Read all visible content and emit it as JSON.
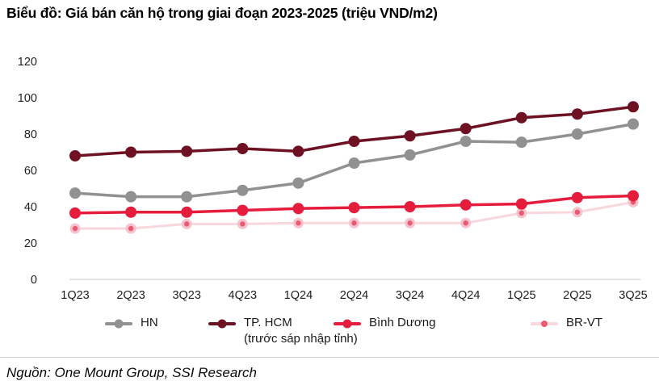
{
  "title": "Biểu đồ: Giá bán căn hộ trong giai đoạn 2023-2025 (triệu VND/m2)",
  "source": "Nguồn: One Mount Group, SSI Research",
  "colors": {
    "hn_gray": "#919191",
    "hcm_maroon": "#6E1123",
    "binh_duong_red": "#E61C3D",
    "brvt_pink_line": "#F8D7DD",
    "brvt_pink_halo": "#F5C3CD",
    "brvt_pink_dot": "#EC5A72",
    "axis_line": "#d9d9d9",
    "tick_text": "#1f1f1f"
  },
  "legend": {
    "items": [
      {
        "label": "HN"
      },
      {
        "label": "TP. HCM",
        "sublabel": "(trước sáp nhập tỉnh)"
      },
      {
        "label": "Bình Dương"
      },
      {
        "label": "BR-VT"
      }
    ]
  },
  "chart_data": {
    "type": "line",
    "title": "Biểu đồ: Giá bán căn hộ trong giai đoạn 2023-2025 (triệu VND/m2)",
    "xlabel": "",
    "ylabel": "triệu VND/m2",
    "ylim": [
      0,
      120
    ],
    "yticks": [
      0,
      20,
      40,
      60,
      80,
      100,
      120
    ],
    "grid": false,
    "legend_position": "bottom",
    "categories": [
      "1Q23",
      "2Q23",
      "3Q23",
      "4Q23",
      "1Q24",
      "2Q24",
      "3Q24",
      "4Q24",
      "1Q25",
      "2Q25",
      "3Q25"
    ],
    "series": [
      {
        "name": "HN",
        "color": "#919191",
        "line_width": 3.5,
        "dot_radius": 7,
        "values": [
          47.5,
          45.5,
          45.5,
          49,
          53,
          64,
          68.5,
          76,
          75.5,
          80,
          85.5
        ]
      },
      {
        "name": "TP. HCM (trước sáp nhập tỉnh)",
        "color": "#6E1123",
        "line_width": 3.5,
        "dot_radius": 7,
        "values": [
          68,
          70,
          70.5,
          72,
          70.5,
          76,
          79,
          83,
          89,
          91,
          95
        ]
      },
      {
        "name": "Bình Dương",
        "color": "#E61C3D",
        "line_width": 3.5,
        "dot_radius": 7,
        "values": [
          36.5,
          37,
          37,
          38,
          39,
          39.5,
          40,
          41,
          41.5,
          45,
          46
        ]
      },
      {
        "name": "BR-VT",
        "color": "#F8D7DD",
        "dot_halo": "#F5C3CD",
        "dot_color": "#EC5A72",
        "line_width": 3,
        "dot_radius": 6.5,
        "inner_dot_radius": 3.2,
        "values": [
          28,
          28,
          30.5,
          30.5,
          31,
          31,
          31,
          31,
          36.5,
          37,
          42.5
        ]
      }
    ]
  }
}
